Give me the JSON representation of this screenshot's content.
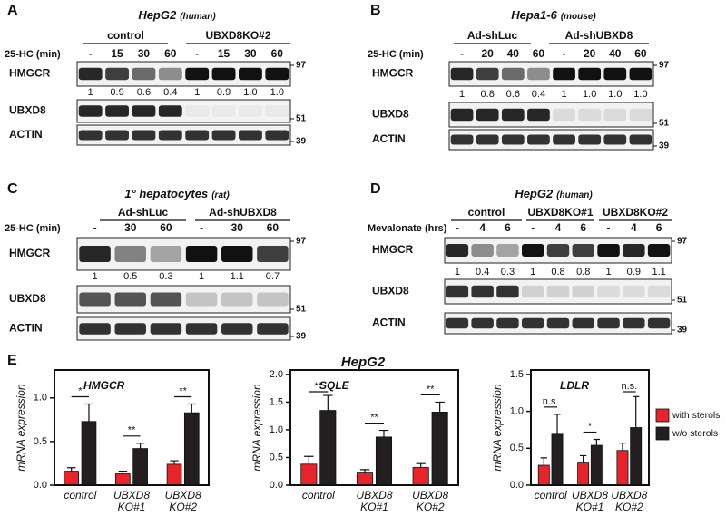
{
  "blots": [
    {
      "panel": "A",
      "title": "HepG2",
      "title_note": "(human)",
      "groups": [
        "control",
        "UBXD8KO#2"
      ],
      "treatment": "25-HC (min)",
      "lanes": [
        "-",
        "15",
        "30",
        "60",
        "-",
        "15",
        "30",
        "60"
      ],
      "rows": [
        {
          "label": "HMGCR",
          "marker": "97"
        },
        {
          "label": "UBXD8",
          "marker": "51"
        },
        {
          "label": "ACTIN",
          "marker": "39"
        }
      ],
      "quantification": [
        "1",
        "0.9",
        "0.6",
        "0.4",
        "1",
        "0.9",
        "1.0",
        "1.0"
      ]
    },
    {
      "panel": "B",
      "title": "Hepa1-6",
      "title_note": "(mouse)",
      "groups": [
        "Ad-shLuc",
        "Ad-shUBXD8"
      ],
      "treatment": "25-HC (min)",
      "lanes": [
        "-",
        "20",
        "40",
        "60",
        "-",
        "20",
        "40",
        "60"
      ],
      "rows": [
        {
          "label": "HMGCR",
          "marker": "97"
        },
        {
          "label": "UBXD8",
          "marker": "51"
        },
        {
          "label": "ACTIN",
          "marker": "39"
        }
      ],
      "quantification": [
        "1",
        "0.8",
        "0.6",
        "0.4",
        "1",
        "1.0",
        "1.0",
        "1.0"
      ]
    },
    {
      "panel": "C",
      "title": "1° hepatocytes",
      "title_note": "(rat)",
      "groups": [
        "Ad-shLuc",
        "Ad-shUBXD8"
      ],
      "treatment": "25-HC (min)",
      "lanes": [
        "-",
        "30",
        "60",
        "-",
        "30",
        "60"
      ],
      "rows": [
        {
          "label": "HMGCR",
          "marker": "97"
        },
        {
          "label": "UBXD8",
          "marker": "51"
        },
        {
          "label": "ACTIN",
          "marker": "39"
        }
      ],
      "quantification": [
        "1",
        "0.5",
        "0.3",
        "1",
        "1.1",
        "0.7"
      ]
    },
    {
      "panel": "D",
      "title": "HepG2",
      "title_note": "(human)",
      "groups": [
        "control",
        "UBXD8KO#1",
        "UBXD8KO#2"
      ],
      "treatment": "Mevalonate (hrs)",
      "lanes": [
        "-",
        "4",
        "6",
        "-",
        "4",
        "6",
        "-",
        "4",
        "6"
      ],
      "rows": [
        {
          "label": "HMGCR",
          "marker": "97"
        },
        {
          "label": "UBXD8",
          "marker": "51"
        },
        {
          "label": "ACTIN",
          "marker": "39"
        }
      ],
      "quantification": [
        "1",
        "0.4",
        "0.3",
        "1",
        "0.8",
        "0.8",
        "1",
        "0.9",
        "1.1"
      ]
    }
  ],
  "panel_e": {
    "label": "E",
    "title": "HepG2"
  },
  "chart_data": [
    {
      "type": "bar",
      "title": "HMGCR",
      "ylabel": "mRNA expression",
      "categories": [
        "control",
        "UBXD8 KO#1",
        "UBXD8 KO#2"
      ],
      "series": [
        {
          "color": "#e8242b",
          "values": [
            0.16,
            0.13,
            0.24
          ],
          "errors": [
            0.04,
            0.03,
            0.04
          ]
        },
        {
          "color": "#231f20",
          "values": [
            0.73,
            0.42,
            0.83
          ],
          "errors": [
            0.2,
            0.06,
            0.1
          ]
        }
      ],
      "significance": [
        "*",
        "**",
        "**"
      ],
      "ylim": [
        0,
        1.32
      ],
      "yticks": [
        {
          "value": 0,
          "label": "0.0"
        },
        {
          "value": 0.5,
          "label": "0.5"
        },
        {
          "value": 1,
          "label": "1.0"
        }
      ]
    },
    {
      "type": "bar",
      "title": "SQLE",
      "ylabel": "mRNA expression",
      "categories": [
        "control",
        "UBXD8 KO#1",
        "UBXD8 KO#2"
      ],
      "series": [
        {
          "color": "#e8242b",
          "values": [
            0.38,
            0.22,
            0.32
          ],
          "errors": [
            0.14,
            0.06,
            0.07
          ]
        },
        {
          "color": "#231f20",
          "values": [
            1.35,
            0.87,
            1.32
          ],
          "errors": [
            0.27,
            0.12,
            0.18
          ]
        }
      ],
      "significance": [
        "**",
        "**",
        "**"
      ],
      "ylim": [
        0,
        2.08
      ],
      "yticks": [
        {
          "value": 0,
          "label": "0.0"
        },
        {
          "value": 0.5,
          "label": "0.5"
        },
        {
          "value": 1,
          "label": "1.0"
        },
        {
          "value": 1.5,
          "label": "1.5"
        },
        {
          "value": 2,
          "label": "2.0"
        }
      ]
    },
    {
      "type": "bar",
      "title": "LDLR",
      "ylabel": "mRNA expression",
      "categories": [
        "control",
        "UBXD8 KO#1",
        "UBXD8 KO#2"
      ],
      "series": [
        {
          "name": "with sterols",
          "color": "#e8242b",
          "values": [
            0.27,
            0.3,
            0.47
          ],
          "errors": [
            0.1,
            0.1,
            0.1
          ]
        },
        {
          "name": "w/o sterols",
          "color": "#231f20",
          "values": [
            0.69,
            0.54,
            0.78
          ],
          "errors": [
            0.27,
            0.08,
            0.42
          ]
        }
      ],
      "significance": [
        "n.s.",
        "*",
        "n.s."
      ],
      "ylim": [
        0,
        1.56
      ],
      "yticks": [
        {
          "value": 0,
          "label": "0.0"
        },
        {
          "value": 0.5,
          "label": "0.5"
        },
        {
          "value": 1,
          "label": "1.0"
        },
        {
          "value": 1.5,
          "label": "1.5"
        }
      ]
    }
  ]
}
